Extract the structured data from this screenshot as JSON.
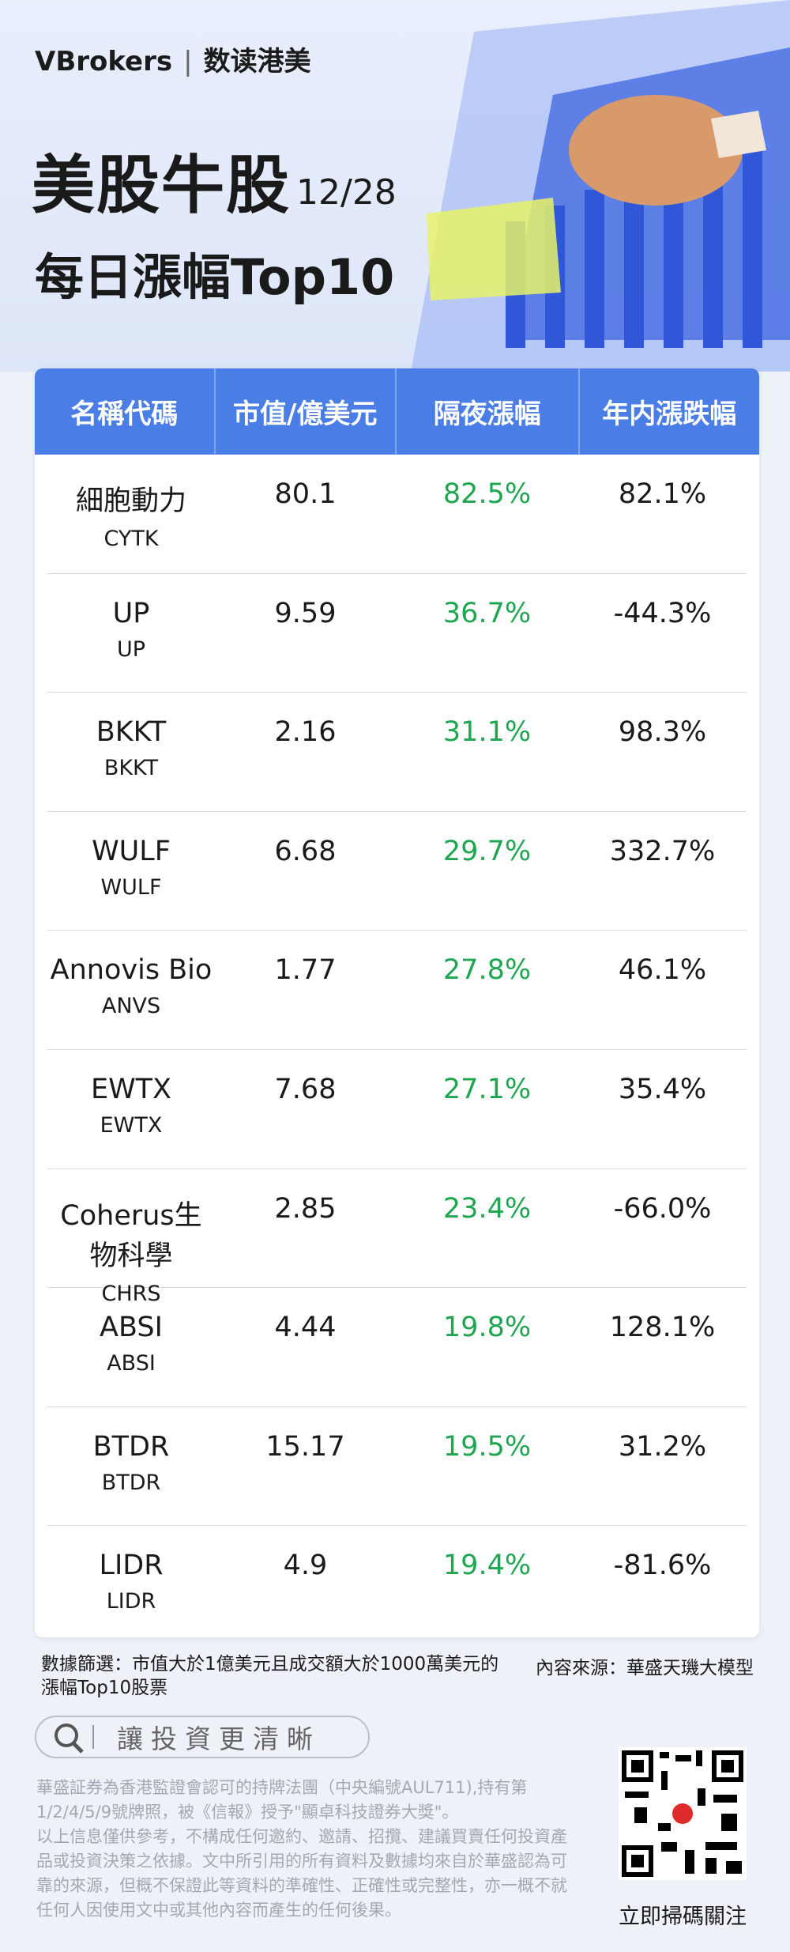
{
  "header": {
    "brand": "VBrokers",
    "column": "数读港美",
    "title": "美股牛股",
    "date": "12/28",
    "subtitle": "每日漲幅Top10"
  },
  "table": {
    "columns": [
      "名稱代碼",
      "市值/億美元",
      "隔夜漲幅",
      "年内漲跌幅"
    ],
    "rows": [
      {
        "name": "細胞動力",
        "code": "CYTK",
        "market_cap": "80.1",
        "overnight": "82.5%",
        "ytd": "82.1%"
      },
      {
        "name": "UP",
        "code": "UP",
        "market_cap": "9.59",
        "overnight": "36.7%",
        "ytd": "-44.3%"
      },
      {
        "name": "BKKT",
        "code": "BKKT",
        "market_cap": "2.16",
        "overnight": "31.1%",
        "ytd": "98.3%"
      },
      {
        "name": "WULF",
        "code": "WULF",
        "market_cap": "6.68",
        "overnight": "29.7%",
        "ytd": "332.7%"
      },
      {
        "name": "Annovis Bio",
        "code": "ANVS",
        "market_cap": "1.77",
        "overnight": "27.8%",
        "ytd": "46.1%"
      },
      {
        "name": "EWTX",
        "code": "EWTX",
        "market_cap": "7.68",
        "overnight": "27.1%",
        "ytd": "35.4%"
      },
      {
        "name": "Coherus生物科學",
        "code": "CHRS",
        "market_cap": "2.85",
        "overnight": "23.4%",
        "ytd": "-66.0%"
      },
      {
        "name": "ABSI",
        "code": "ABSI",
        "market_cap": "4.44",
        "overnight": "19.8%",
        "ytd": "128.1%"
      },
      {
        "name": "BTDR",
        "code": "BTDR",
        "market_cap": "15.17",
        "overnight": "19.5%",
        "ytd": "31.2%"
      },
      {
        "name": "LIDR",
        "code": "LIDR",
        "market_cap": "4.9",
        "overnight": "19.4%",
        "ytd": "-81.6%"
      }
    ]
  },
  "footer": {
    "note": "數據篩選：市值大於1億美元且成交額大於1000萬美元的漲幅Top10股票",
    "source": "內容來源：華盛天璣大模型",
    "search": "讓投資更清晰",
    "disclaimer": [
      "華盛証券為香港監證會認可的持牌法團（中央編號AUL711),持有第1/2/4/5/9號牌照，被《信報》授予\"顯卓科技證券大獎\"。",
      "以上信息僅供參考，不構成任何邀約、邀請、招攬、建議買賣任何投資產品或投資決策之依據。文中所引用的所有資料及數據均來自於華盛認為可靠的來源，但概不保證此等資料的準確性、正確性或完整性，亦一概不就任何人因使用文中或其他內容而產生的任何後果。"
    ],
    "qr_label": "立即掃碼關注"
  }
}
